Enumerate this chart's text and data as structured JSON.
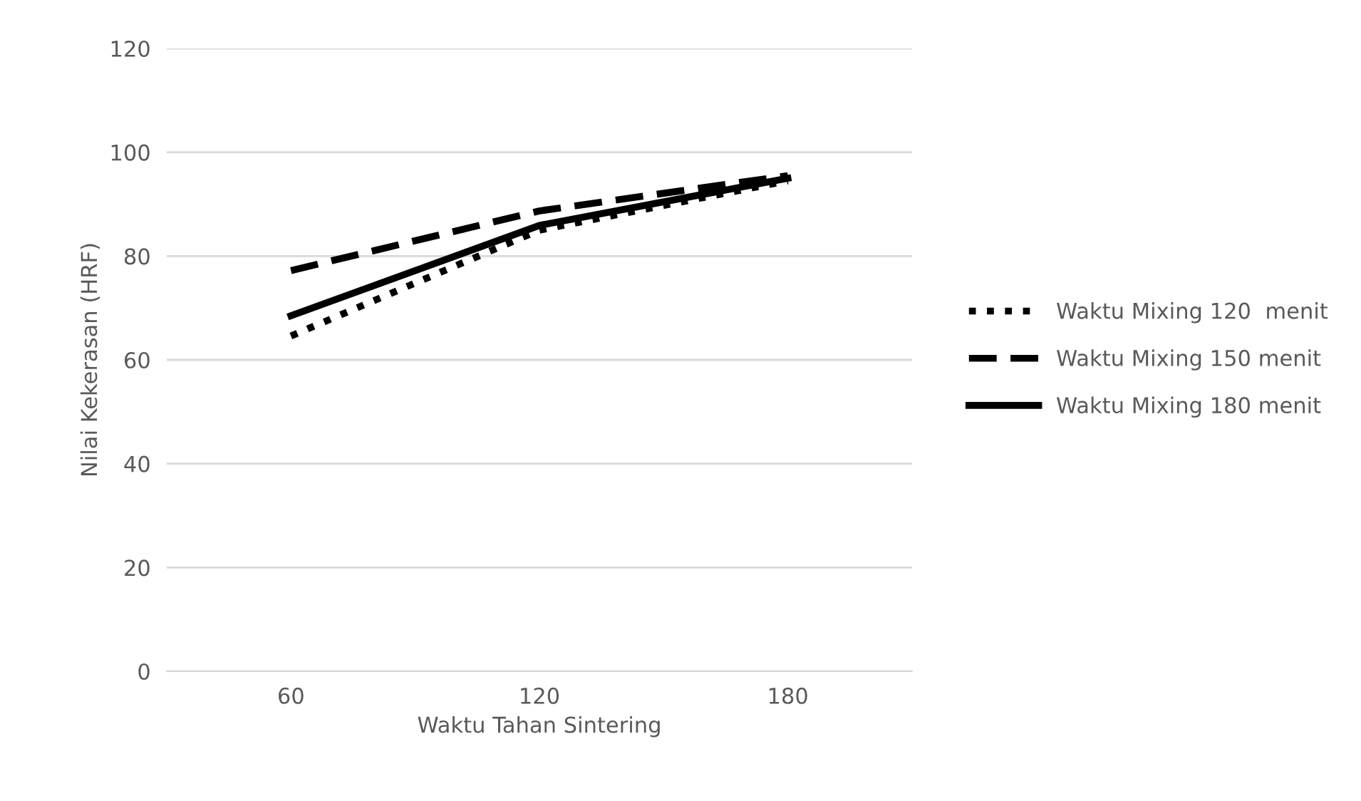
{
  "chart_data": {
    "type": "line",
    "xlabel": "Waktu Tahan Sintering",
    "ylabel": "Nilai Kekerasan (HRF)",
    "categories": [
      "60",
      "120",
      "180"
    ],
    "series": [
      {
        "name": "Waktu Mixing 120  menit",
        "color": "#000000",
        "line_style": "dotted",
        "values": [
          64.6,
          85,
          94.5
        ]
      },
      {
        "name": "Waktu Mixing 150 menit",
        "color": "#000000",
        "line_style": "dashed",
        "values": [
          77.2,
          88.7,
          95.5
        ]
      },
      {
        "name": "Waktu Mixing 180 menit",
        "color": "#000000",
        "line_style": "solid",
        "values": [
          68.5,
          85.9,
          95
        ]
      }
    ],
    "ylim": [
      0,
      120
    ],
    "yticks": [
      0,
      20,
      40,
      60,
      80,
      100,
      120
    ],
    "grid": "y",
    "legend": "right",
    "marker": "none"
  }
}
